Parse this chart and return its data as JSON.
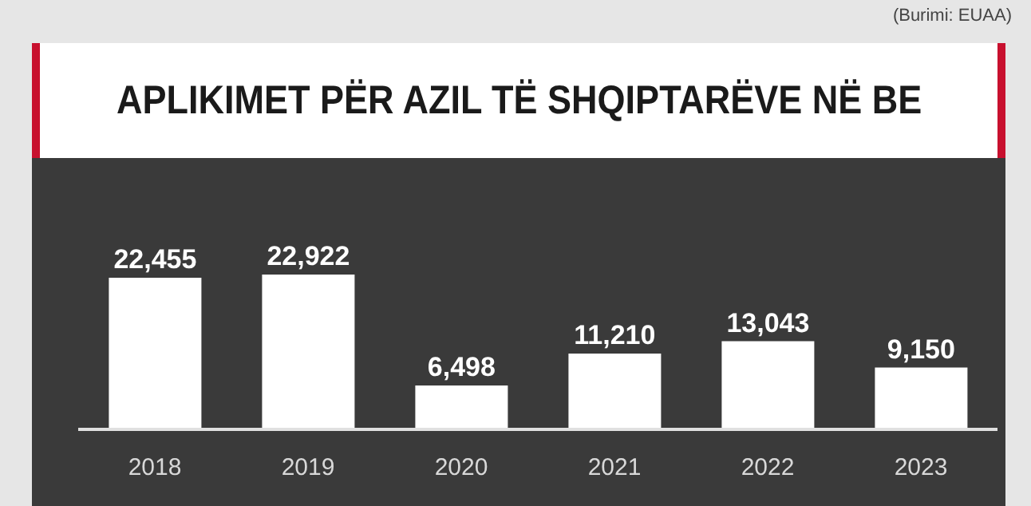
{
  "chart_data": {
    "type": "bar",
    "title": "APLIKIMET PËR AZIL TË SHQIPTARËVE NË BE",
    "annotations": [
      "(Burimi: EUAA)"
    ],
    "categories": [
      "2018",
      "2019",
      "2020",
      "2021",
      "2022",
      "2023"
    ],
    "values": [
      22455,
      22922,
      6498,
      11210,
      13043,
      9150
    ],
    "value_labels": [
      "22,455",
      "22,922",
      "6,498",
      "11,210",
      "13,043",
      "9,150"
    ],
    "color": "#ffffff"
  }
}
